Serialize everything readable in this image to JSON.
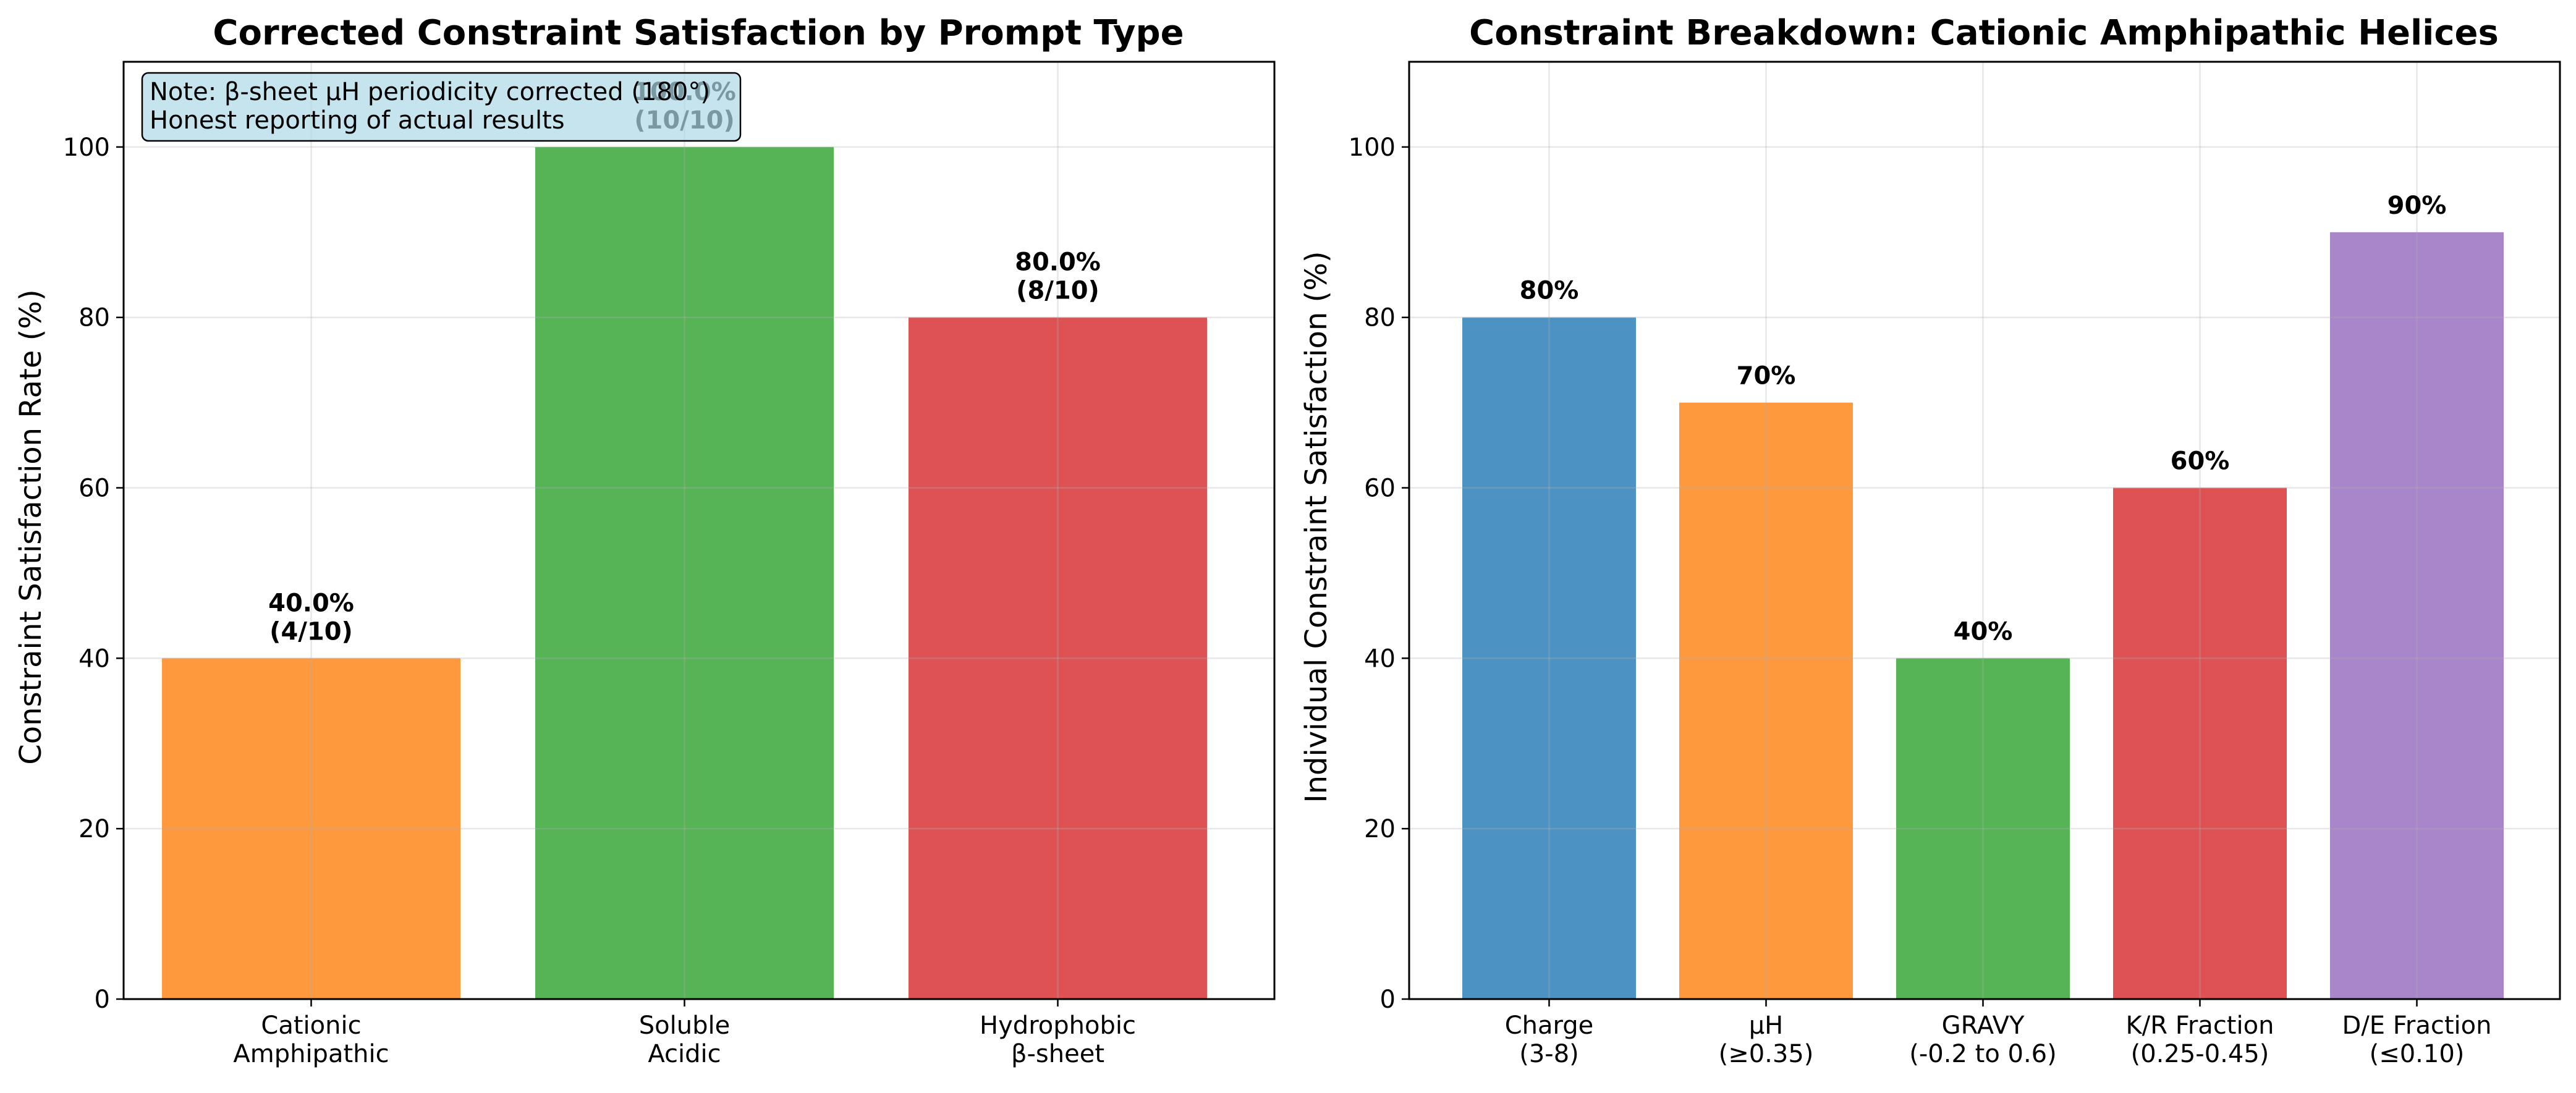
{
  "chart_data": [
    {
      "type": "bar",
      "title": "Corrected Constraint Satisfaction by Prompt Type",
      "xlabel": "",
      "ylabel": "Constraint Satisfaction Rate (%)",
      "ylim": [
        0,
        110
      ],
      "yticks": [
        "0",
        "20",
        "40",
        "60",
        "80",
        "100"
      ],
      "grid": true,
      "categories": [
        [
          "Cationic",
          "Amphipathic"
        ],
        [
          "Soluble",
          "Acidic"
        ],
        [
          "Hydrophobic",
          "β-sheet"
        ]
      ],
      "values": [
        40.0,
        100.0,
        80.0
      ],
      "bar_labels": [
        [
          "40.0%",
          "(4/10)"
        ],
        [
          "100.0%",
          "(10/10)"
        ],
        [
          "80.0%",
          "(8/10)"
        ]
      ],
      "colors": [
        "#ff7f0e",
        "#2ca02c",
        "#d62728"
      ],
      "annotation": [
        "Note: β-sheet μH periodicity corrected (180°)",
        "Honest reporting of actual results"
      ]
    },
    {
      "type": "bar",
      "title": "Constraint Breakdown: Cationic Amphipathic Helices",
      "xlabel": "",
      "ylabel": "Individual Constraint Satisfaction (%)",
      "ylim": [
        0,
        110
      ],
      "yticks": [
        "0",
        "20",
        "40",
        "60",
        "80",
        "100"
      ],
      "grid": true,
      "categories": [
        [
          "Charge",
          "(3-8)"
        ],
        [
          "μH",
          "(≥0.35)"
        ],
        [
          "GRAVY",
          "(-0.2 to 0.6)"
        ],
        [
          "K/R Fraction",
          "(0.25-0.45)"
        ],
        [
          "D/E Fraction",
          "(≤0.10)"
        ]
      ],
      "values": [
        80,
        70,
        40,
        60,
        90
      ],
      "bar_labels": [
        [
          "80%"
        ],
        [
          "70%"
        ],
        [
          "40%"
        ],
        [
          "60%"
        ],
        [
          "90%"
        ]
      ],
      "colors": [
        "#1f77b4",
        "#ff7f0e",
        "#2ca02c",
        "#d62728",
        "#9467bd"
      ]
    }
  ]
}
